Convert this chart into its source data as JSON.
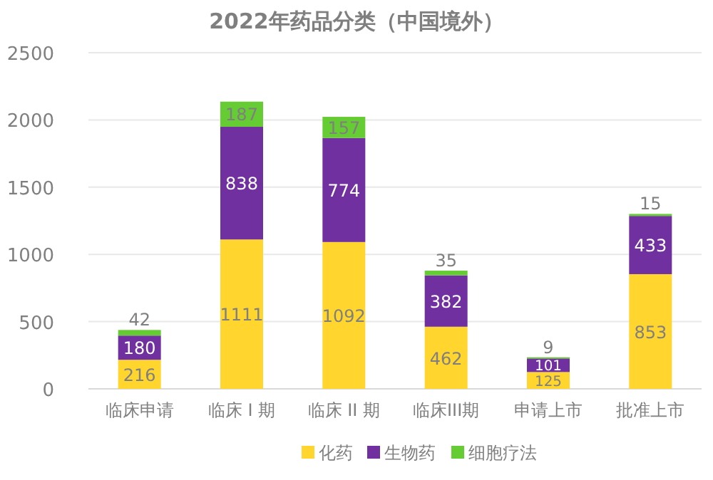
{
  "chart_data": {
    "type": "bar",
    "title": "2022年药品分类（中国境外）",
    "categories": [
      "临床申请",
      "临床 I 期",
      "临床 II 期",
      "临床III期",
      "申请上市",
      "批准上市"
    ],
    "stacked": true,
    "data_labels": true,
    "legend": "bottom",
    "grid": "y",
    "ylim": [
      0,
      2500
    ],
    "yticks": [
      0,
      500,
      1000,
      1500,
      2000,
      2500
    ],
    "series": [
      {
        "name": "化药",
        "color": "#ffd52e",
        "values": [
          216,
          1111,
          1092,
          462,
          125,
          853
        ]
      },
      {
        "name": "生物药",
        "color": "#7030a0",
        "values": [
          180,
          838,
          774,
          382,
          101,
          433
        ]
      },
      {
        "name": "细胞疗法",
        "color": "#66cc33",
        "values": [
          42,
          187,
          157,
          35,
          9,
          15
        ]
      }
    ]
  }
}
